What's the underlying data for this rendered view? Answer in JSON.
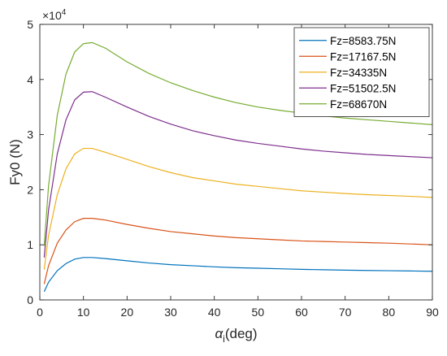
{
  "chart_data": {
    "type": "line",
    "title": "",
    "xlabel_main": "α",
    "xlabel_sub": "i",
    "xlabel_rest": "(deg)",
    "ylabel": "Fy0 (N)",
    "exponent_label": "×10",
    "exponent_power": "4",
    "xlim": [
      0,
      90
    ],
    "ylim": [
      0,
      5
    ],
    "x_ticks": [
      0,
      10,
      20,
      30,
      40,
      50,
      60,
      70,
      80,
      90
    ],
    "y_ticks": [
      0,
      1,
      2,
      3,
      4,
      5
    ],
    "legend_position": "top-right",
    "grid": false,
    "x": [
      1,
      2,
      4,
      6,
      8,
      10,
      12,
      15,
      20,
      25,
      30,
      35,
      40,
      45,
      50,
      55,
      60,
      65,
      70,
      75,
      80,
      85,
      90
    ],
    "series": [
      {
        "name": "Fz=8583.75N",
        "color": "#0072BD",
        "values": [
          0.15,
          0.32,
          0.53,
          0.66,
          0.74,
          0.77,
          0.77,
          0.75,
          0.71,
          0.67,
          0.64,
          0.62,
          0.6,
          0.585,
          0.575,
          0.565,
          0.555,
          0.547,
          0.54,
          0.535,
          0.53,
          0.525,
          0.52
        ]
      },
      {
        "name": "Fz=17167.5N",
        "color": "#D95319",
        "values": [
          0.29,
          0.62,
          1.03,
          1.27,
          1.42,
          1.48,
          1.48,
          1.45,
          1.37,
          1.3,
          1.24,
          1.2,
          1.16,
          1.13,
          1.11,
          1.09,
          1.07,
          1.06,
          1.05,
          1.04,
          1.03,
          1.015,
          1.0
        ]
      },
      {
        "name": "Fz=34335N",
        "color": "#EDB120",
        "values": [
          0.55,
          1.17,
          1.91,
          2.38,
          2.65,
          2.75,
          2.75,
          2.68,
          2.55,
          2.42,
          2.31,
          2.22,
          2.16,
          2.1,
          2.06,
          2.02,
          1.98,
          1.955,
          1.93,
          1.91,
          1.895,
          1.88,
          1.86
        ]
      },
      {
        "name": "Fz=51502.5N",
        "color": "#7E2F8E",
        "values": [
          0.77,
          1.63,
          2.65,
          3.27,
          3.63,
          3.77,
          3.78,
          3.68,
          3.5,
          3.33,
          3.19,
          3.07,
          2.98,
          2.9,
          2.84,
          2.79,
          2.74,
          2.7,
          2.67,
          2.64,
          2.62,
          2.6,
          2.58
        ]
      },
      {
        "name": "Fz=68670N",
        "color": "#77AC30",
        "values": [
          0.98,
          2.07,
          3.35,
          4.1,
          4.5,
          4.65,
          4.67,
          4.57,
          4.32,
          4.11,
          3.94,
          3.8,
          3.68,
          3.58,
          3.5,
          3.44,
          3.39,
          3.34,
          3.3,
          3.27,
          3.24,
          3.21,
          3.18
        ]
      }
    ]
  }
}
